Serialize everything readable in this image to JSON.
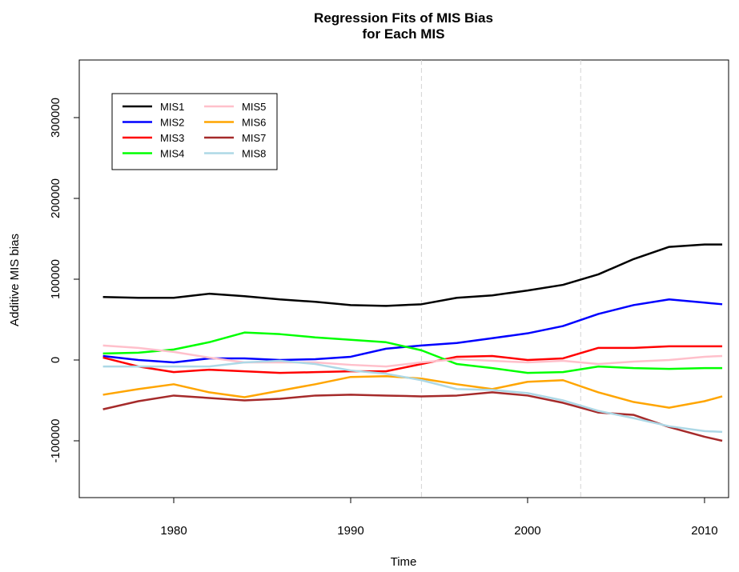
{
  "chart_data": {
    "type": "line",
    "title": [
      "Regression Fits of MIS Bias",
      "for Each MIS"
    ],
    "xlabel": "Time",
    "ylabel": "Additive MIS bias",
    "x": [
      1976,
      1978,
      1980,
      1982,
      1984,
      1986,
      1988,
      1990,
      1992,
      1994,
      1996,
      1998,
      2000,
      2002,
      2004,
      2006,
      2008,
      2010,
      2011
    ],
    "xlim": [
      1974.66,
      2011.36
    ],
    "xticks": [
      1980,
      1990,
      2000,
      2010
    ],
    "ylim": [
      -170300,
      371300
    ],
    "yticks": [
      -100000,
      0,
      100000,
      200000,
      300000
    ],
    "vlines": [
      1994,
      2003
    ],
    "legend": "topleft",
    "series": [
      {
        "name": "MIS1",
        "color": "#000000",
        "values": [
          78000,
          77000,
          77000,
          82000,
          79000,
          75000,
          72000,
          68000,
          67000,
          69000,
          77000,
          80000,
          86000,
          93000,
          106000,
          125000,
          140000,
          143000,
          143000
        ]
      },
      {
        "name": "MIS2",
        "color": "#0000ff",
        "values": [
          5000,
          0,
          -3000,
          2000,
          2000,
          0,
          1000,
          4000,
          14000,
          18000,
          21000,
          27000,
          33000,
          42000,
          57000,
          68000,
          75000,
          71000,
          69000
        ]
      },
      {
        "name": "MIS3",
        "color": "#ff0000",
        "values": [
          3000,
          -8000,
          -15000,
          -12000,
          -14000,
          -16000,
          -15000,
          -14000,
          -14000,
          -5000,
          4000,
          5000,
          0,
          2000,
          15000,
          15000,
          17000,
          17000,
          17000
        ]
      },
      {
        "name": "MIS4",
        "color": "#00ff00",
        "values": [
          8000,
          9000,
          13000,
          22000,
          34000,
          32000,
          28000,
          25000,
          22000,
          12000,
          -5000,
          -10000,
          -16000,
          -15000,
          -8000,
          -10000,
          -11000,
          -10000,
          -10000
        ]
      },
      {
        "name": "MIS5",
        "color": "#ffc0cb",
        "values": [
          18000,
          15000,
          10000,
          3000,
          -3000,
          -3000,
          -3000,
          -6000,
          -8000,
          -3000,
          1000,
          -1000,
          -3000,
          -1000,
          -5000,
          -2000,
          0,
          4000,
          5000
        ]
      },
      {
        "name": "MIS6",
        "color": "#ffa500",
        "values": [
          -43000,
          -36000,
          -30000,
          -40000,
          -46000,
          -38000,
          -30000,
          -21000,
          -20000,
          -23000,
          -30000,
          -36000,
          -27000,
          -25000,
          -40000,
          -52000,
          -59000,
          -51000,
          -45000
        ]
      },
      {
        "name": "MIS7",
        "color": "#a52a2a",
        "values": [
          -61000,
          -51000,
          -44000,
          -47000,
          -50000,
          -48000,
          -44000,
          -43000,
          -44000,
          -45000,
          -44000,
          -40000,
          -44000,
          -53000,
          -65000,
          -68000,
          -83000,
          -95000,
          -100000
        ]
      },
      {
        "name": "MIS8",
        "color": "#add8e6",
        "values": [
          -8000,
          -8000,
          -8000,
          -8000,
          -3000,
          -1000,
          -5000,
          -13000,
          -17000,
          -25000,
          -36000,
          -37000,
          -41000,
          -50000,
          -63000,
          -72000,
          -82000,
          -88000,
          -89000
        ]
      }
    ]
  }
}
